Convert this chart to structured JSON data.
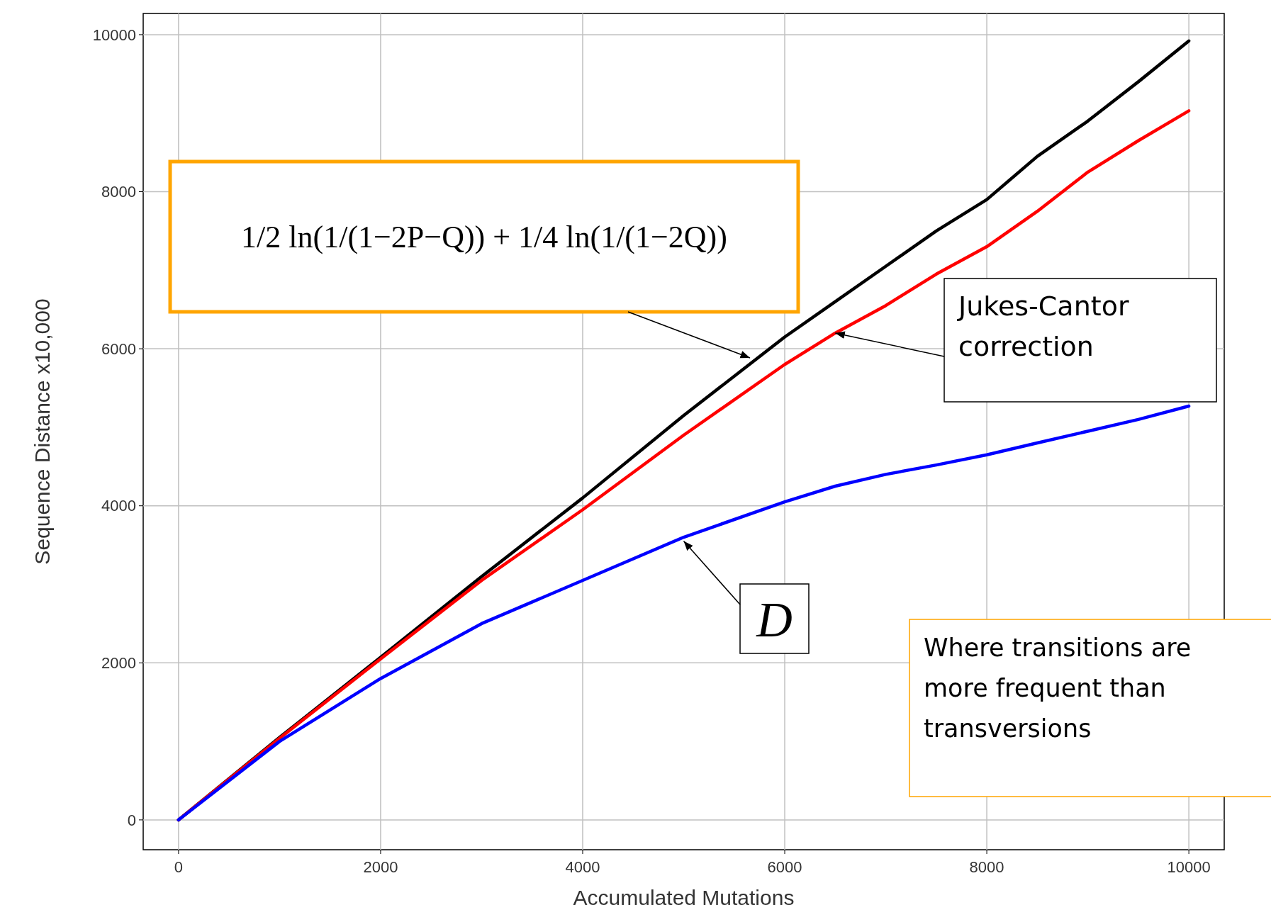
{
  "chart_data": {
    "type": "line",
    "xlabel": "Accumulated Mutations",
    "ylabel": "Sequence Distance  x10,000",
    "x": [
      0,
      1000,
      2000,
      3000,
      4000,
      5000,
      6000,
      6500,
      7000,
      7500,
      8000,
      8500,
      9000,
      9500,
      10000
    ],
    "series": [
      {
        "color": "#000000",
        "values": [
          0,
          1050,
          2070,
          3100,
          4100,
          5150,
          6150,
          6600,
          7050,
          7500,
          7900,
          8450,
          8900,
          9400,
          9920
        ]
      },
      {
        "color": "#ff0000",
        "values": [
          0,
          1040,
          2050,
          3050,
          3950,
          4900,
          5800,
          6200,
          6550,
          6950,
          7300,
          7750,
          8250,
          8650,
          9030
        ]
      },
      {
        "color": "#0000ff",
        "values": [
          0,
          1000,
          1800,
          2500,
          3050,
          3600,
          4050,
          4250,
          4400,
          4520,
          4650,
          4800,
          4950,
          5100,
          5270
        ]
      }
    ],
    "xlim": [
      -350,
      10350
    ],
    "ylim": [
      -380,
      10270
    ],
    "xticks": [
      0,
      2000,
      4000,
      6000,
      8000,
      10000
    ],
    "yticks": [
      0,
      2000,
      4000,
      6000,
      8000,
      10000
    ],
    "grid": true,
    "marker": "none",
    "line_style": "solid",
    "annotations": [
      "1/2 ln(1/(1−2P−Q)) + 1/4 ln(1/(1−2Q))",
      {
        "text": "Jukes-Cantor correction",
        "x": 6500,
        "y": 6200
      },
      {
        "text": "D",
        "x": 5000,
        "y": 3550
      },
      "Where transitions are more frequent than transversions"
    ]
  }
}
